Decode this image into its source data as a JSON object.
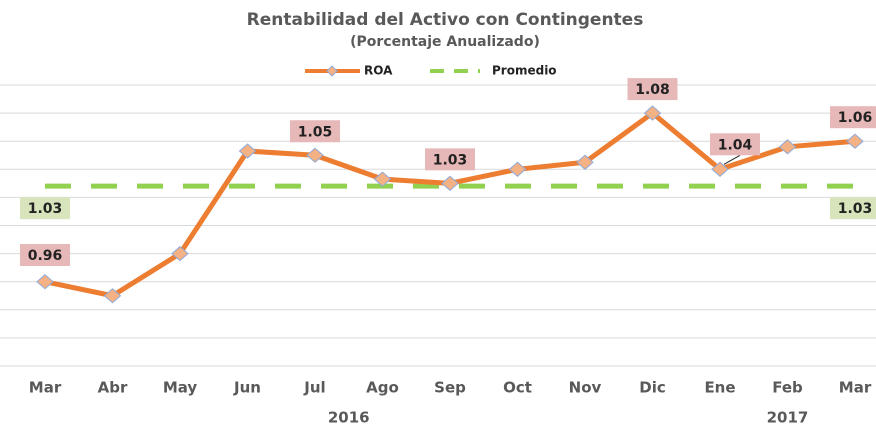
{
  "chart_data": {
    "type": "line",
    "title": "Rentabilidad del Activo con Contingentes",
    "subtitle": "(Porcentaje Anualizado)",
    "categories": [
      "Mar",
      "Abr",
      "May",
      "Jun",
      "Jul",
      "Ago",
      "Sep",
      "Oct",
      "Nov",
      "Dic",
      "Ene",
      "Feb",
      "Mar"
    ],
    "x_group_labels": [
      "2016",
      "2017"
    ],
    "series": [
      {
        "name": "ROA",
        "color": "#ed7d31",
        "values": [
          0.96,
          0.95,
          0.98,
          1.053,
          1.05,
          1.033,
          1.03,
          1.04,
          1.045,
          1.08,
          1.04,
          1.056,
          1.06
        ],
        "value_labels": [
          "0.96",
          null,
          null,
          null,
          "1.05",
          null,
          "1.03",
          null,
          null,
          "1.08",
          "1.04",
          null,
          "1.06"
        ]
      },
      {
        "name": "Promedio",
        "color": "#92d050",
        "values": [
          1.028,
          1.028,
          1.028,
          1.028,
          1.028,
          1.028,
          1.028,
          1.028,
          1.028,
          1.028,
          1.028,
          1.028,
          1.028
        ],
        "value_labels": [
          "1.03",
          null,
          null,
          null,
          null,
          null,
          null,
          null,
          null,
          null,
          null,
          null,
          "1.03"
        ]
      }
    ],
    "ylim": [
      0.9,
      1.1
    ],
    "yticks": [
      0.9,
      0.92,
      0.94,
      0.96,
      0.98,
      1,
      1.02,
      1.04,
      1.06,
      1.08,
      1.1
    ],
    "grid": true,
    "legend": "top"
  }
}
